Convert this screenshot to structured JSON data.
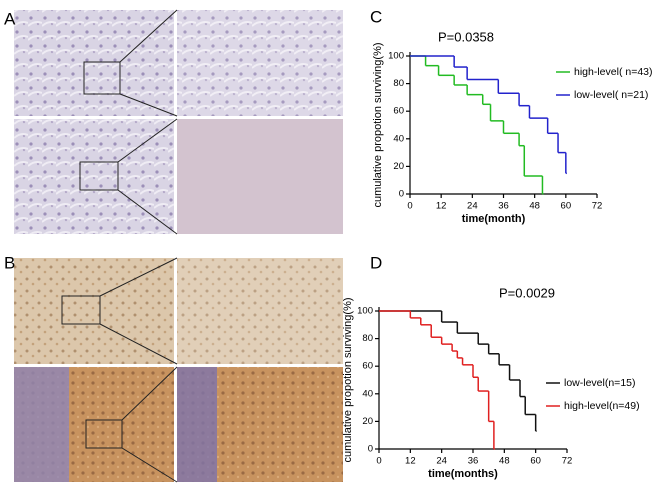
{
  "image_panels": [
    {
      "label": "A"
    },
    {
      "label": "B"
    }
  ],
  "chart_data": [
    {
      "type": "line",
      "step": true,
      "panel": "C",
      "title": "P=0.0358",
      "ylabel": "cumulative propotion surviving(%)",
      "xlabel": "time(month)",
      "xlim": [
        0,
        72
      ],
      "xticks": [
        0,
        12,
        24,
        36,
        48,
        60,
        72
      ],
      "ylim": [
        0,
        100
      ],
      "yticks": [
        0,
        20,
        40,
        60,
        80,
        100
      ],
      "series": [
        {
          "name": "high-level( n=43)",
          "color": "#22bb22",
          "x": [
            0,
            6,
            11,
            17,
            22,
            28,
            31,
            36,
            42,
            44,
            51
          ],
          "values": [
            100,
            93,
            86,
            79,
            72,
            65,
            53,
            44,
            35,
            13,
            0
          ]
        },
        {
          "name": "low-level( n=21)",
          "color": "#2222cc",
          "x": [
            0,
            17,
            22,
            34,
            42,
            46,
            53,
            57,
            60
          ],
          "values": [
            100,
            92,
            83,
            73,
            64,
            55,
            44,
            30,
            15
          ]
        }
      ]
    },
    {
      "type": "line",
      "step": true,
      "panel": "D",
      "title": "P=0.0029",
      "ylabel": "cumulative propotion surviving(%)",
      "xlabel": "time(months)",
      "xlim": [
        0,
        72
      ],
      "xticks": [
        0,
        12,
        24,
        36,
        48,
        60,
        72
      ],
      "ylim": [
        0,
        100
      ],
      "yticks": [
        0,
        20,
        40,
        60,
        80,
        100
      ],
      "series": [
        {
          "name": "low-level(n=15)",
          "color": "#111111",
          "x": [
            0,
            24,
            30,
            38,
            42,
            46,
            50,
            54,
            56,
            60
          ],
          "values": [
            100,
            92,
            84,
            76,
            69,
            61,
            50,
            38,
            25,
            13
          ]
        },
        {
          "name": "high-level(n=49)",
          "color": "#e02020",
          "x": [
            0,
            12,
            16,
            20,
            24,
            28,
            30,
            32,
            36,
            38,
            42,
            44
          ],
          "values": [
            100,
            95,
            90,
            81,
            76,
            71,
            66,
            61,
            52,
            42,
            20,
            0
          ]
        }
      ]
    }
  ]
}
